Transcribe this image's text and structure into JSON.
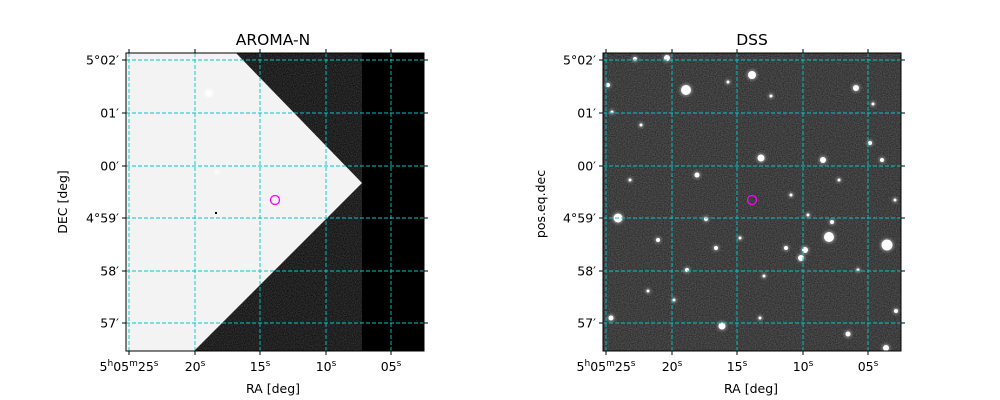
{
  "panels": [
    {
      "title": "AROMA-N",
      "xlabel": "RA [deg]",
      "ylabel": "DEC [deg]",
      "x_ticks": [
        "5h05m25s",
        "20s",
        "15s",
        "10s",
        "05s"
      ],
      "y_ticks": [
        "5°02′",
        "01′",
        "00′",
        "4°59′",
        "58′",
        "57′"
      ]
    },
    {
      "title": "DSS",
      "xlabel": "RA [deg]",
      "ylabel": "pos.eq.dec",
      "x_ticks": [
        "5h05m25s",
        "20s",
        "15s",
        "10s",
        "05s"
      ],
      "y_ticks": [
        "5°02′",
        "01′",
        "00′",
        "4°59′",
        "58′",
        "57′"
      ]
    }
  ],
  "colors": {
    "grid": "#00c8c8",
    "marker": "#ff00ff",
    "aroma_bg": "#f2f2f2",
    "dss_bg": "#1c1c1c"
  }
}
